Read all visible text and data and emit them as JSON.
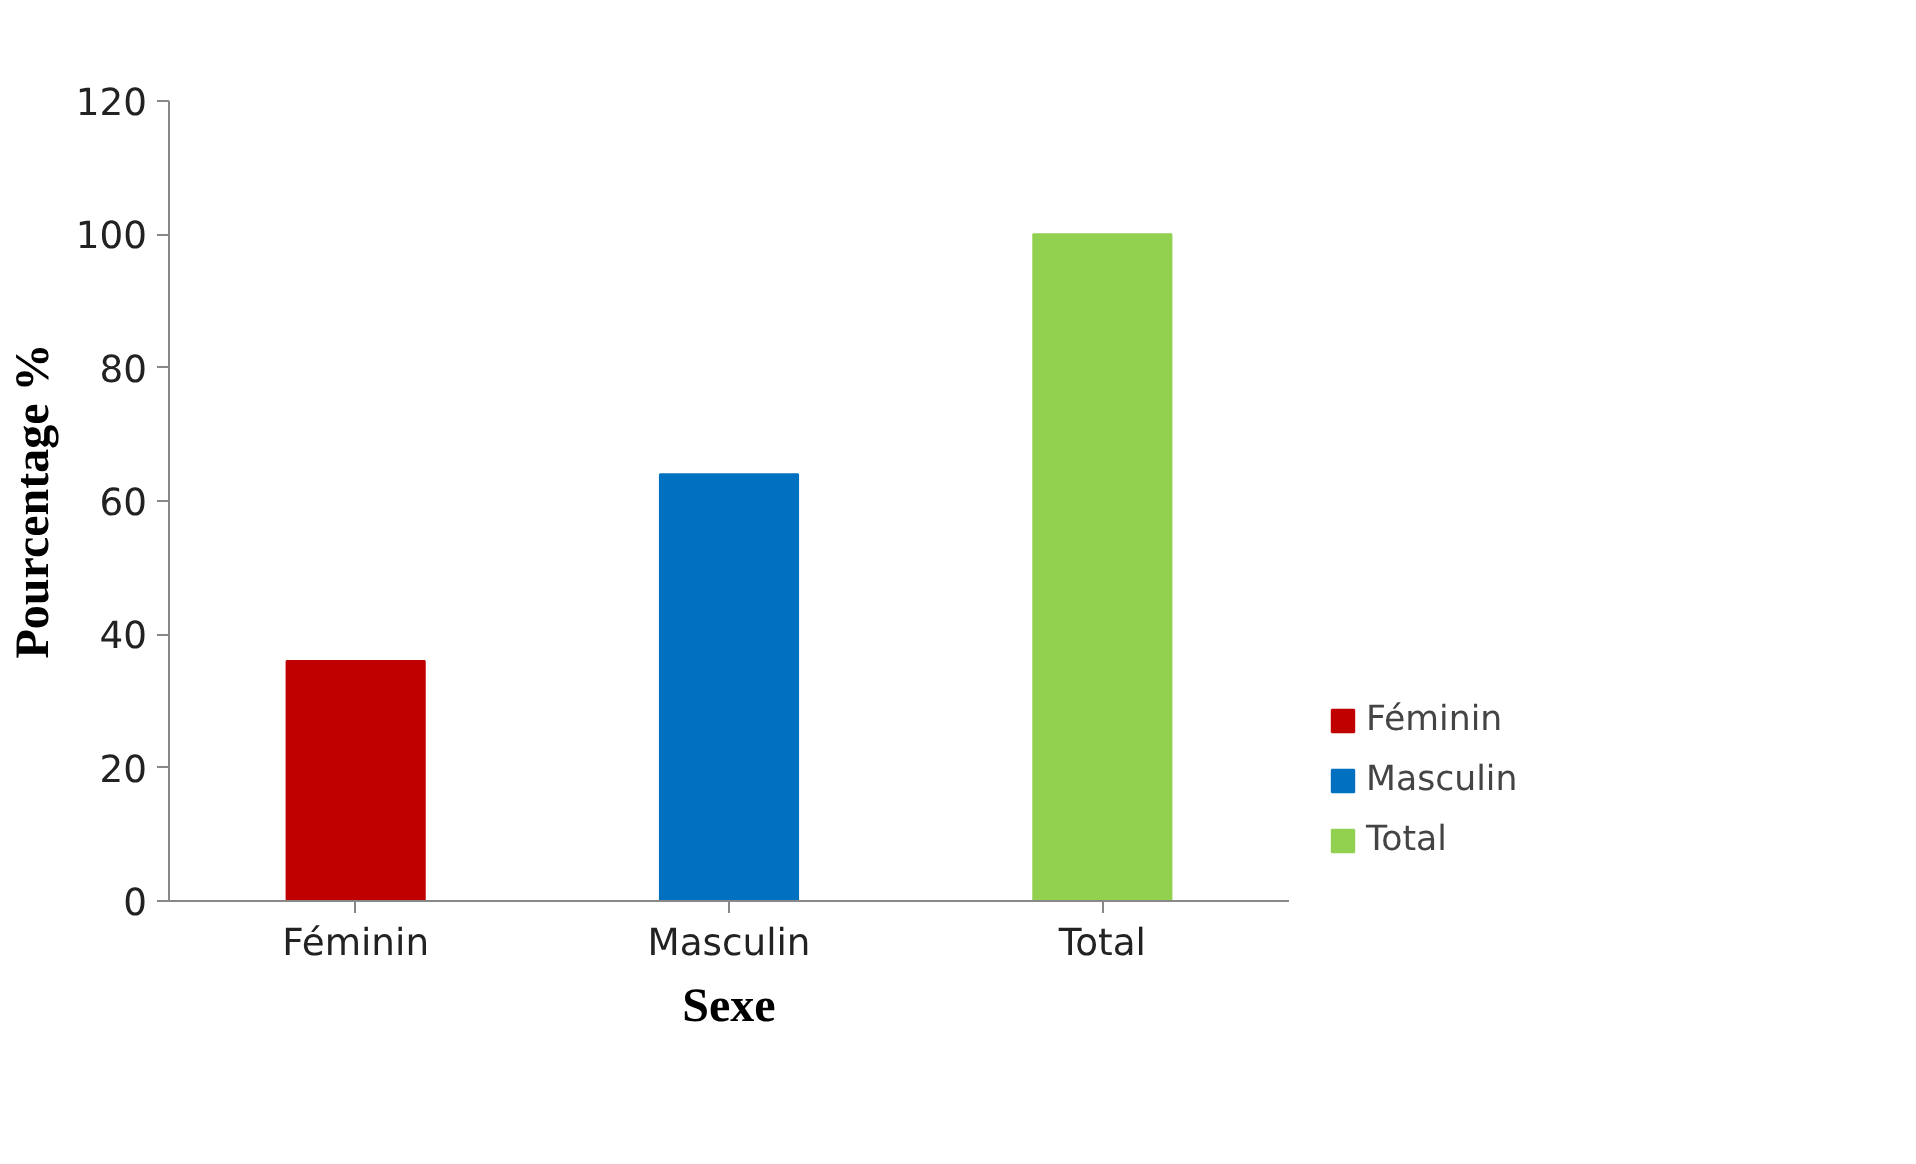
{
  "chart_data": {
    "type": "bar",
    "xlabel": "Sexe",
    "ylabel": "Pourcentage %",
    "categories": [
      "Féminin",
      "Masculin",
      "Total"
    ],
    "series": [
      {
        "name": "Féminin",
        "color": "#c00000",
        "values": [
          36,
          null,
          null
        ]
      },
      {
        "name": "Masculin",
        "color": "#0070c0",
        "values": [
          null,
          64,
          null
        ]
      },
      {
        "name": "Total",
        "color": "#92d050",
        "values": [
          null,
          null,
          100
        ]
      }
    ],
    "ylim": [
      0,
      120
    ],
    "yticks": [
      0,
      20,
      40,
      60,
      80,
      100,
      120
    ],
    "grid": false,
    "legend": "bottom right"
  }
}
